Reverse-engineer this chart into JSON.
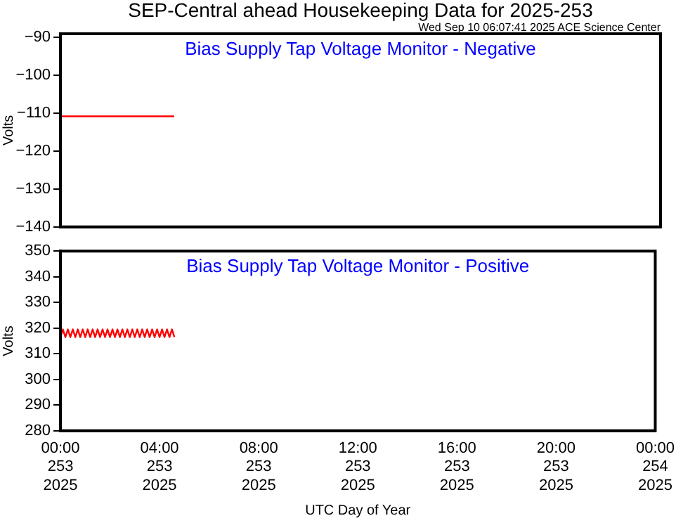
{
  "chart_data": [
    {
      "type": "line",
      "title": "SEP-Central ahead Housekeeping Data for 2025-253",
      "subtitle": "Bias Supply Tap Voltage Monitor - Negative",
      "ylabel": "Volts",
      "annotations": [
        "Wed Sep 10 06:07:41 2025 ACE Science Center"
      ],
      "x": [
        "2025-09-10T00:00",
        "2025-09-10T04:33"
      ],
      "series": [
        {
          "color": "#ff0000",
          "values": [
            -110.8,
            -110.8
          ]
        }
      ],
      "xlim": [
        "2025-09-10T00:00",
        "2025-09-11T00:00"
      ],
      "xticks": [
        {
          "value": "2025-09-10T00:00",
          "label": null
        },
        {
          "value": "2025-09-10T04:00",
          "label": null
        },
        {
          "value": "2025-09-10T08:00",
          "label": null
        },
        {
          "value": "2025-09-10T12:00",
          "label": null
        },
        {
          "value": "2025-09-10T16:00",
          "label": null
        },
        {
          "value": "2025-09-10T20:00",
          "label": null
        },
        {
          "value": "2025-09-11T00:00",
          "label": null
        }
      ],
      "ylim": [
        -140,
        -89
      ],
      "yticks": [
        -140,
        -130,
        -120,
        -110,
        -100,
        -90
      ],
      "tick_labels": "y",
      "line_style": "solid"
    },
    {
      "type": "line",
      "title": "Bias Supply Tap Voltage Monitor - Positive",
      "xlabel": "UTC Day of Year",
      "ylabel": "Volts",
      "x": [
        "2025-09-10T00:00",
        "2025-09-10T00:06",
        "2025-09-10T00:12",
        "2025-09-10T00:18",
        "2025-09-10T00:24",
        "2025-09-10T00:30",
        "2025-09-10T00:36",
        "2025-09-10T00:42",
        "2025-09-10T00:48",
        "2025-09-10T00:54",
        "2025-09-10T01:00",
        "2025-09-10T01:06",
        "2025-09-10T01:12",
        "2025-09-10T01:18",
        "2025-09-10T01:24",
        "2025-09-10T01:30",
        "2025-09-10T01:36",
        "2025-09-10T01:42",
        "2025-09-10T01:48",
        "2025-09-10T01:54",
        "2025-09-10T02:00",
        "2025-09-10T02:06",
        "2025-09-10T02:12",
        "2025-09-10T02:18",
        "2025-09-10T02:24",
        "2025-09-10T02:30",
        "2025-09-10T02:36",
        "2025-09-10T02:42",
        "2025-09-10T02:48",
        "2025-09-10T02:54",
        "2025-09-10T03:00",
        "2025-09-10T03:06",
        "2025-09-10T03:12",
        "2025-09-10T03:18",
        "2025-09-10T03:24",
        "2025-09-10T03:30",
        "2025-09-10T03:36",
        "2025-09-10T03:42",
        "2025-09-10T03:48",
        "2025-09-10T03:54",
        "2025-09-10T04:00",
        "2025-09-10T04:06",
        "2025-09-10T04:12",
        "2025-09-10T04:18",
        "2025-09-10T04:24",
        "2025-09-10T04:30",
        "2025-09-10T04:36"
      ],
      "series": [
        {
          "color": "#ff0000",
          "values": [
            316.5,
            319.5,
            316.5,
            319.5,
            316.5,
            319.5,
            316.5,
            319.5,
            316.5,
            319.5,
            316.5,
            319.5,
            316.5,
            319.5,
            316.5,
            319.5,
            316.5,
            319.5,
            316.5,
            319.5,
            316.5,
            319.5,
            316.5,
            319.5,
            316.5,
            319.5,
            316.5,
            319.5,
            316.5,
            319.5,
            316.5,
            319.5,
            316.5,
            319.5,
            316.5,
            319.5,
            316.5,
            319.5,
            316.5,
            319.5,
            316.5,
            319.5,
            316.5,
            319.5,
            316.5,
            319.5,
            316.5
          ]
        }
      ],
      "xlim": [
        "2025-09-10T00:00",
        "2025-09-11T00:00"
      ],
      "xticks": [
        {
          "value": "2025-09-10T00:00",
          "label": "00:00\n253\n2025"
        },
        {
          "value": "2025-09-10T04:00",
          "label": "04:00\n253\n2025"
        },
        {
          "value": "2025-09-10T08:00",
          "label": "08:00\n253\n2025"
        },
        {
          "value": "2025-09-10T12:00",
          "label": "12:00\n253\n2025"
        },
        {
          "value": "2025-09-10T16:00",
          "label": "16:00\n253\n2025"
        },
        {
          "value": "2025-09-10T20:00",
          "label": "20:00\n253\n2025"
        },
        {
          "value": "2025-09-11T00:00",
          "label": "00:00\n254\n2025"
        }
      ],
      "ylim": [
        280,
        350
      ],
      "yticks": [
        280,
        290,
        300,
        310,
        320,
        330,
        340,
        350
      ],
      "line_style": "solid"
    }
  ]
}
